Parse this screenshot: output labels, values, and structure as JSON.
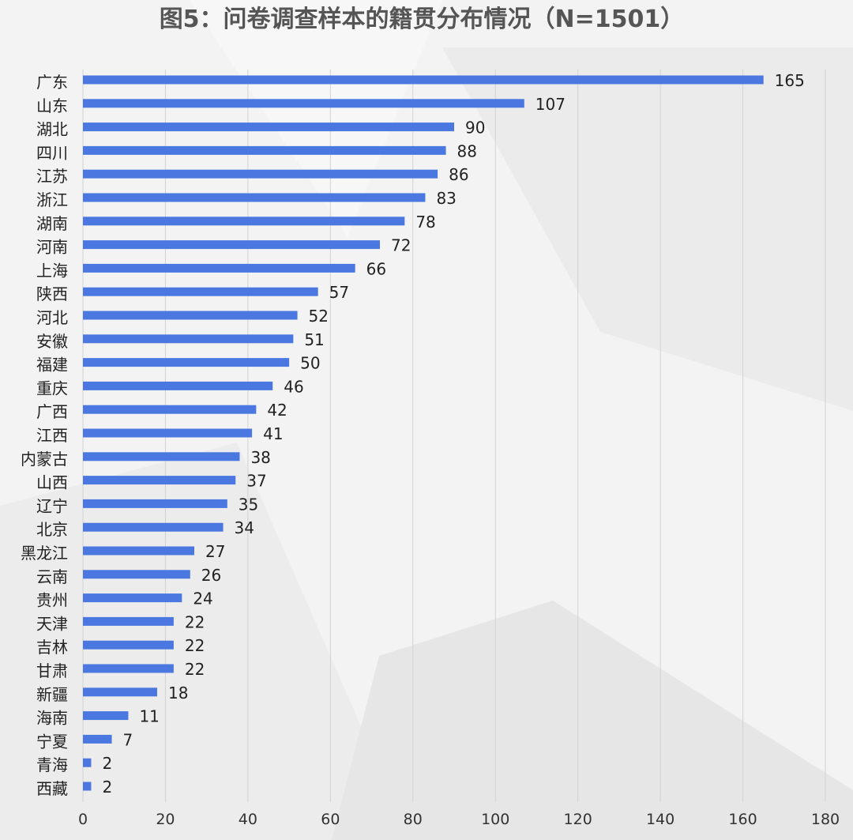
{
  "chart_data": {
    "type": "bar",
    "orientation": "horizontal",
    "title": "图5：问卷调查样本的籍贯分布情况（N=1501）",
    "categories": [
      "广东",
      "山东",
      "湖北",
      "四川",
      "江苏",
      "浙江",
      "湖南",
      "河南",
      "上海",
      "陕西",
      "河北",
      "安徽",
      "福建",
      "重庆",
      "广西",
      "江西",
      "内蒙古",
      "山西",
      "辽宁",
      "北京",
      "黑龙江",
      "云南",
      "贵州",
      "天津",
      "吉林",
      "甘肃",
      "新疆",
      "海南",
      "宁夏",
      "青海",
      "西藏"
    ],
    "values": [
      165,
      107,
      90,
      88,
      86,
      83,
      78,
      72,
      66,
      57,
      52,
      51,
      50,
      46,
      42,
      41,
      38,
      37,
      35,
      34,
      27,
      26,
      24,
      22,
      22,
      22,
      18,
      11,
      7,
      2,
      2
    ],
    "xlim": [
      0,
      180
    ],
    "xticks": [
      0,
      20,
      40,
      60,
      80,
      100,
      120,
      140,
      160,
      180
    ],
    "grid": "vertical",
    "data_labels": true,
    "bar_color": "#4b78e0",
    "legend": "none"
  }
}
